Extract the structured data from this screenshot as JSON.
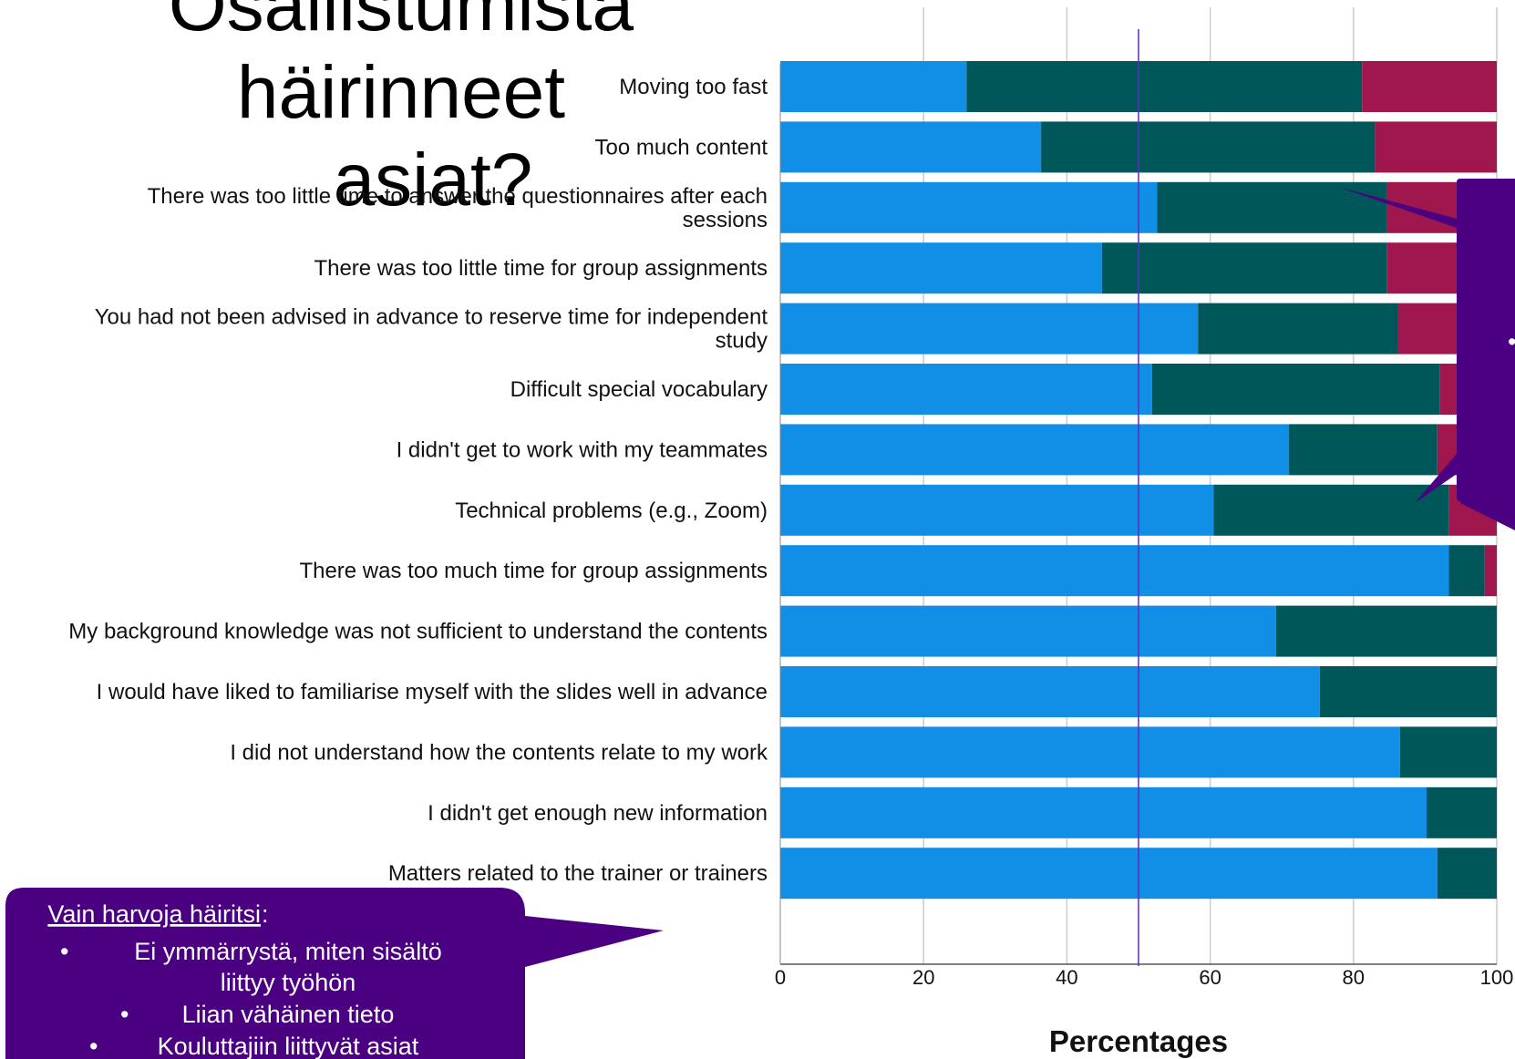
{
  "slide": {
    "title_line1": "Osallistumista häirinneet",
    "title_line2": "asiat?"
  },
  "chart_data": {
    "type": "bar",
    "orientation": "horizontal",
    "stacked": true,
    "xlabel": "Percentages",
    "xlim": [
      0,
      100
    ],
    "xticks": [
      0,
      20,
      40,
      60,
      80,
      100
    ],
    "grid": true,
    "reference_line_x": 50,
    "categories": [
      "Moving too fast",
      "Too much content",
      "There was too little time to answer the questionnaires after each sessions",
      "There was too little time for group assignments",
      "You had not been advised in advance to reserve time for independent study",
      "Difficult special vocabulary",
      "I didn't get to work with my teammates",
      "Technical problems (e.g., Zoom)",
      "There was too much time for group assignments",
      "My background knowledge was not sufficient to understand the contents",
      "I would have liked to familiarise myself with the slides well in advance",
      "I did not understand how the contents relate to my work",
      "I didn't get enough new information",
      "Matters related to the trainer or trainers"
    ],
    "category_label_lines": [
      [
        "Moving too fast"
      ],
      [
        "Too much content"
      ],
      [
        "There was too little time to answer the questionnaires after each",
        "sessions"
      ],
      [
        "There was too little time for group assignments"
      ],
      [
        "You had not been advised in advance to reserve time for independent",
        "study"
      ],
      [
        "Difficult special vocabulary"
      ],
      [
        "I didn't get to work with my teammates"
      ],
      [
        "Technical problems (e.g., Zoom)"
      ],
      [
        "There was too much time for group assignments"
      ],
      [
        "My background knowledge was not sufficient to understand the contents"
      ],
      [
        "I would have liked to familiarise myself with the slides well in advance"
      ],
      [
        "I did not understand how the contents relate to my work"
      ],
      [
        "I didn't get enough new information"
      ],
      [
        "Matters related to the trainer or trainers"
      ]
    ],
    "series": [
      {
        "color": "#118ee6",
        "values": [
          26,
          36.4,
          52.6,
          44.9,
          58.3,
          51.9,
          71,
          60.5,
          93.3,
          69.2,
          75.3,
          86.5,
          90.2,
          91.7
        ]
      },
      {
        "color": "#00575a",
        "values": [
          55.2,
          46.6,
          32,
          39.8,
          27.9,
          40.1,
          20.7,
          32.8,
          5,
          30.8,
          24.7,
          13.5,
          9.8,
          8.3
        ]
      },
      {
        "color": "#a0174e",
        "values": [
          18.8,
          17,
          15.4,
          15.3,
          13.8,
          8,
          8.3,
          6.7,
          1.7,
          0,
          0,
          0,
          0,
          0
        ]
      }
    ]
  },
  "callout_left": {
    "heading": "Vain harvoja häiritsi",
    "heading_suffix": ":",
    "items": [
      {
        "bullet": "•",
        "lines": [
          "Ei ymmärrystä, miten sisältö",
          "liittyy työhön"
        ]
      },
      {
        "bullet": "•",
        "lines": [
          "Liian vähäinen tieto"
        ]
      },
      {
        "bullet": "•",
        "lines": [
          "Kouluttajiin liittyvät asiat"
        ]
      }
    ]
  },
  "callout_right": {
    "bullet": "•"
  },
  "colors": {
    "callout_fill": "#4b0082",
    "grid": "#cccccc",
    "reference_line": "#5a2dbf"
  }
}
